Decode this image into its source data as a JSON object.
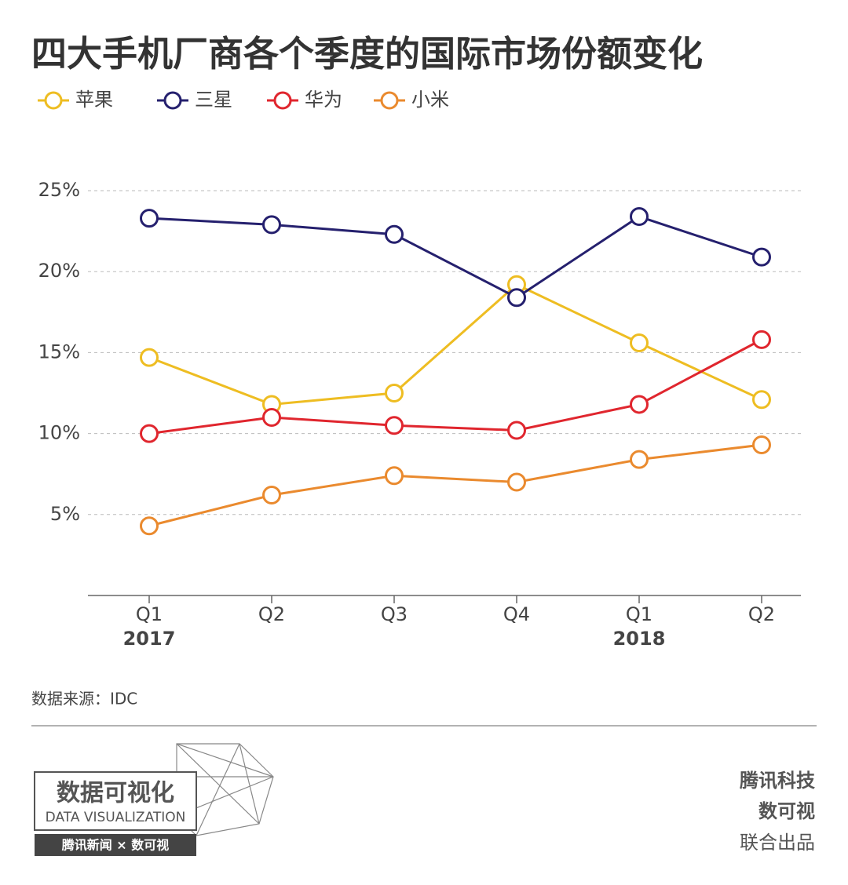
{
  "chart_data": {
    "type": "line",
    "title": "四大手机厂商各个季度的国际市场份额变化",
    "categories": [
      "Q1",
      "Q2",
      "Q3",
      "Q4",
      "Q1",
      "Q2"
    ],
    "x_sublabels": [
      "2017",
      null,
      null,
      null,
      "2018",
      null
    ],
    "series": [
      {
        "name": "苹果",
        "color": "#eebd22",
        "values": [
          14.7,
          11.8,
          12.5,
          19.2,
          15.6,
          12.1
        ]
      },
      {
        "name": "三星",
        "color": "#25206e",
        "values": [
          23.3,
          22.9,
          22.3,
          18.4,
          23.4,
          20.9
        ]
      },
      {
        "name": "华为",
        "color": "#e0262e",
        "values": [
          10.0,
          11.0,
          10.5,
          10.2,
          11.8,
          15.8
        ]
      },
      {
        "name": "小米",
        "color": "#ea8a2e",
        "values": [
          4.3,
          6.2,
          7.4,
          7.0,
          8.4,
          9.3
        ]
      }
    ],
    "ylim": [
      0,
      25
    ],
    "yticks": [
      {
        "value": 5,
        "label": "5%"
      },
      {
        "value": 10,
        "label": "10%"
      },
      {
        "value": 15,
        "label": "15%"
      },
      {
        "value": 20,
        "label": "20%"
      },
      {
        "value": 25,
        "label": "25%"
      }
    ],
    "grid": true,
    "source": "数据来源：IDC"
  },
  "footer": {
    "logo_title": "数据可视化",
    "logo_subtitle": "DATA VISUALIZATION",
    "logo_bar": "腾讯新闻 × 数可视",
    "credits": [
      "腾讯科技",
      "数可视",
      "联合出品"
    ]
  }
}
